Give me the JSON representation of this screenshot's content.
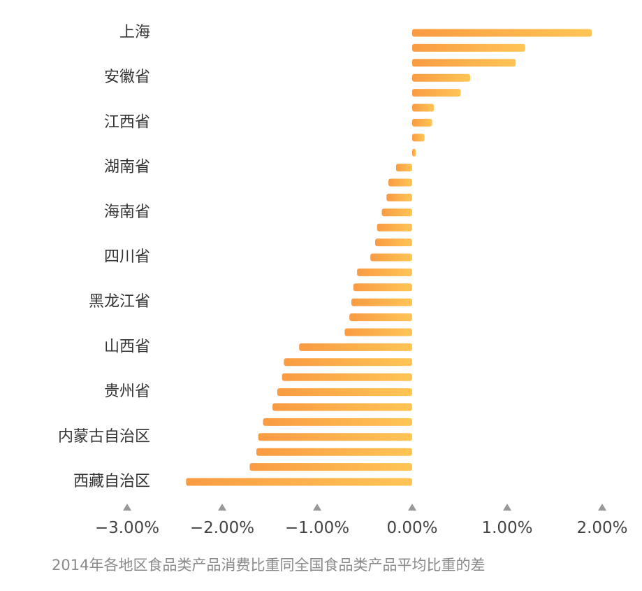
{
  "chart_data": {
    "type": "bar",
    "orientation": "horizontal",
    "title": "",
    "xlabel": "",
    "ylabel": "",
    "xlim": [
      -3,
      2
    ],
    "grid": false,
    "legend": "none",
    "categories": [
      "上海",
      "",
      "",
      "安徽省",
      "",
      "",
      "江西省",
      "",
      "",
      "湖南省",
      "",
      "",
      "海南省",
      "",
      "",
      "四川省",
      "",
      "",
      "黑龙江省",
      "",
      "",
      "山西省",
      "",
      "",
      "贵州省",
      "",
      "",
      "内蒙古自治区",
      "",
      "",
      "西藏自治区"
    ],
    "values": [
      1.89,
      1.19,
      1.09,
      0.61,
      0.51,
      0.23,
      0.21,
      0.13,
      0.04,
      -0.17,
      -0.25,
      -0.27,
      -0.32,
      -0.37,
      -0.39,
      -0.44,
      -0.58,
      -0.62,
      -0.64,
      -0.66,
      -0.71,
      -1.19,
      -1.35,
      -1.37,
      -1.42,
      -1.47,
      -1.57,
      -1.62,
      -1.64,
      -1.71,
      -2.38
    ],
    "ticks": [
      {
        "value": -3,
        "label": "−3.00%"
      },
      {
        "value": -2,
        "label": "−2.00%"
      },
      {
        "value": -1,
        "label": "−1.00%"
      },
      {
        "value": 0,
        "label": "0.00%"
      },
      {
        "value": 1,
        "label": "1.00%"
      },
      {
        "value": 2,
        "label": "2.00%"
      }
    ],
    "caption": "2014年各地区食品类产品消费比重同全国食品类产品平均比重的差",
    "colors": {
      "bar_start": "#F99B43",
      "bar_end": "#FFC555",
      "tick_marker": "#999999"
    }
  }
}
